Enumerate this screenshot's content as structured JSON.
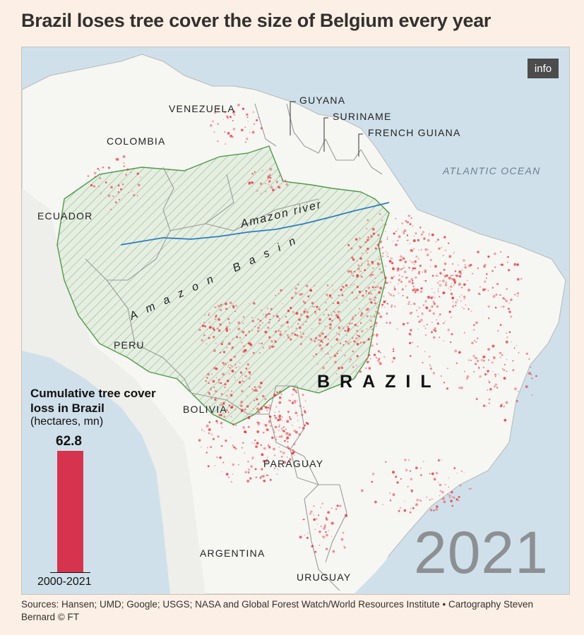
{
  "title": "Brazil loses tree cover the size of Belgium every year",
  "info_button": "info",
  "map": {
    "countries": {
      "venezuela": "VENEZUELA",
      "guyana": "GUYANA",
      "suriname": "SURINAME",
      "french_guiana": "FRENCH GUIANA",
      "colombia": "COLOMBIA",
      "ecuador": "ECUADOR",
      "peru": "PERU",
      "bolivia": "BOLIVIA",
      "paraguay": "PARAGUAY",
      "argentina": "ARGENTINA",
      "uruguay": "URUGUAY",
      "brazil": "BRAZIL"
    },
    "ocean": "ATLANTIC OCEAN",
    "river": "Amazon river",
    "basin": "Amazon Basin",
    "year": "2021",
    "colors": {
      "ocean": "#cfe0ea",
      "land": "#f6f6f3",
      "tree_loss": "#e8343c",
      "basin_outline": "#4f9a4a",
      "river": "#2a7fc0",
      "border": "#9a9a9a"
    }
  },
  "chart": {
    "title": "Cumulative tree cover loss in Brazil",
    "subtitle": "(hectares, mn)",
    "value_label": "62.8",
    "category": "2000-2021",
    "bar_color": "#d6334e"
  },
  "chart_data": {
    "type": "bar",
    "categories": [
      "2000-2021"
    ],
    "values": [
      62.8
    ],
    "title": "Cumulative tree cover loss in Brazil",
    "ylabel": "(hectares, mn)"
  },
  "source": "Sources: Hansen; UMD; Google; USGS; NASA and Global Forest Watch/World Resources Institute • Cartography Steven Bernard © FT"
}
